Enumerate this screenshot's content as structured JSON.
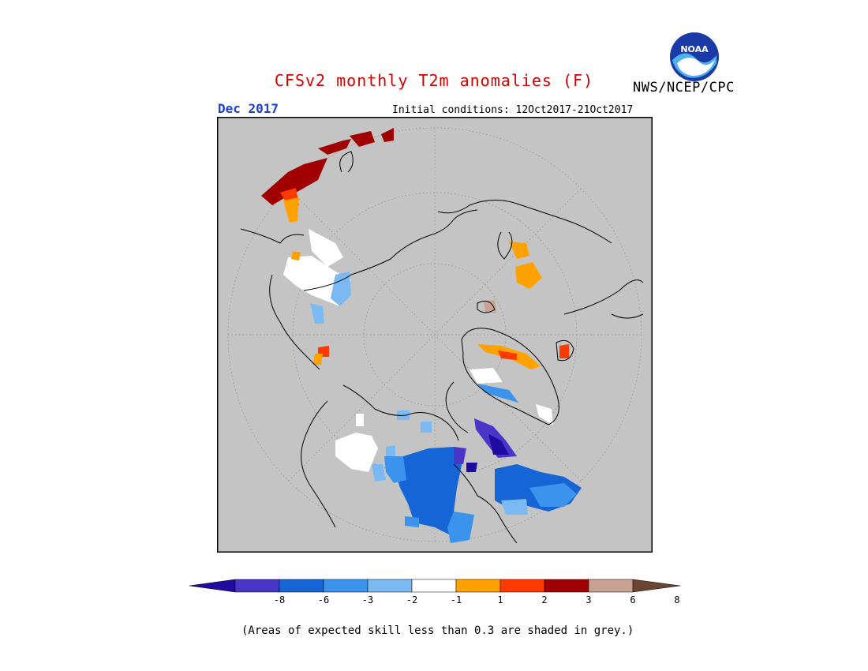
{
  "header": {
    "title": "CFSv2 monthly T2m anomalies (F)",
    "agency": "NWS/NCEP/CPC",
    "month": "Dec 2017",
    "initial_conditions": "Initial conditions: 12Oct2017-21Oct2017",
    "logo_text": "NOAA"
  },
  "colors": {
    "background_grey": "#c4c4c4",
    "title_red": "#d40000",
    "month_blue": "#1f3fd0"
  },
  "colorbar": {
    "bins": [
      {
        "color": "#1f0ba0"
      },
      {
        "color": "#4a35c8"
      },
      {
        "color": "#1565d6"
      },
      {
        "color": "#3c93eb"
      },
      {
        "color": "#7ab9f2"
      },
      {
        "color": "#ffffff"
      },
      {
        "color": "#ffa200"
      },
      {
        "color": "#ff3a00"
      },
      {
        "color": "#a00000"
      },
      {
        "color": "#c8a393"
      },
      {
        "color": "#6b4532"
      }
    ],
    "labels": [
      "-8",
      "-6",
      "-3",
      "-2",
      "-1",
      "1",
      "2",
      "3",
      "6",
      "8"
    ]
  },
  "footnote": "(Areas of expected skill less than 0.3 are shaded in grey.)"
}
